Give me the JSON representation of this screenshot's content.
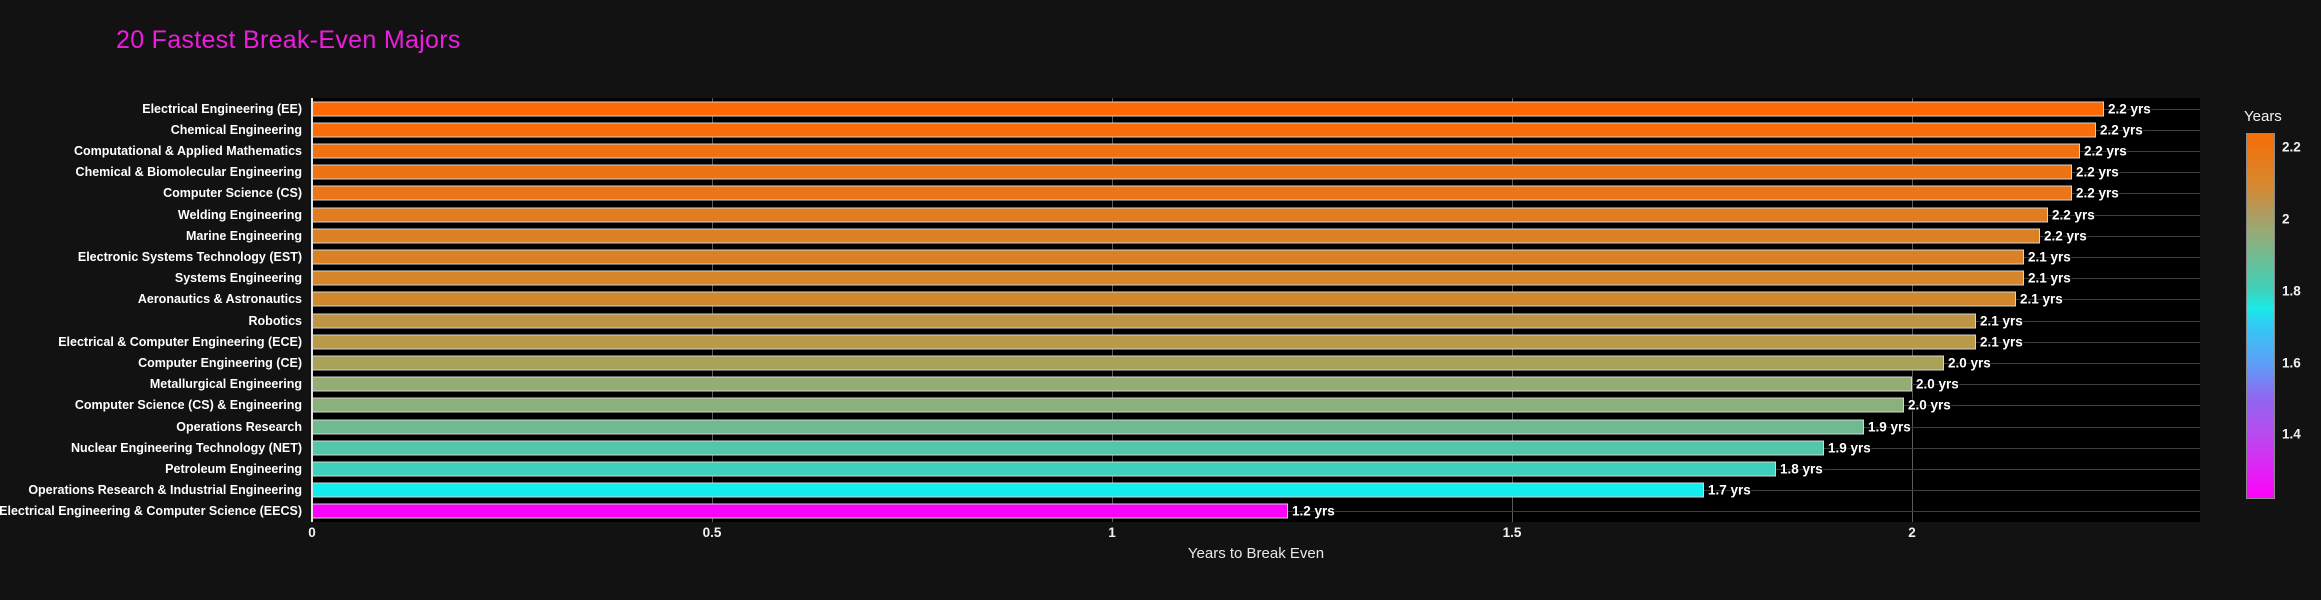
{
  "title": {
    "text": "20 Fastest Break-Even Majors",
    "color": "#ed1ddf"
  },
  "background": {
    "figure": "#121212",
    "plot": "#000000"
  },
  "axes": {
    "x_title": "Years to Break Even",
    "x_ticks": [
      {
        "v": 0,
        "label": "0"
      },
      {
        "v": 0.5,
        "label": "0.5"
      },
      {
        "v": 1,
        "label": "1"
      },
      {
        "v": 1.5,
        "label": "1.5"
      },
      {
        "v": 2,
        "label": "2"
      }
    ]
  },
  "colorbar": {
    "title": "Years",
    "range": [
      1.22,
      2.24
    ],
    "ticks": [
      {
        "v": 2.2,
        "label": "2.2"
      },
      {
        "v": 2.0,
        "label": "2"
      },
      {
        "v": 1.8,
        "label": "1.8"
      },
      {
        "v": 1.6,
        "label": "1.6"
      },
      {
        "v": 1.4,
        "label": "1.4"
      }
    ],
    "gradient": [
      {
        "c": "#f3700a",
        "p": 0
      },
      {
        "c": "#ee7513",
        "p": 4
      },
      {
        "c": "#d6882e",
        "p": 14
      },
      {
        "c": "#b2995c",
        "p": 21
      },
      {
        "c": "#97aa76",
        "p": 27
      },
      {
        "c": "#63c29c",
        "p": 36
      },
      {
        "c": "#3dd2bb",
        "p": 43
      },
      {
        "c": "#19ebe9",
        "p": 48
      },
      {
        "c": "#2fcdf2",
        "p": 52
      },
      {
        "c": "#5b9ff7",
        "p": 63
      },
      {
        "c": "#8d69f1",
        "p": 72
      },
      {
        "c": "#b64cee",
        "p": 82
      },
      {
        "c": "#db28f4",
        "p": 91
      },
      {
        "c": "#fe01fb",
        "p": 100
      }
    ]
  },
  "chart_data": {
    "type": "bar",
    "orientation": "horizontal",
    "title": "20 Fastest Break-Even Majors",
    "xlabel": "Years to Break Even",
    "xlim": [
      0,
      2.36
    ],
    "grid": true,
    "legend_position": "right-colorbar",
    "sort_order": "descending from top",
    "categories": [
      "Electrical Engineering (EE)",
      "Chemical Engineering",
      "Computational & Applied Mathematics",
      "Chemical & Biomolecular Engineering",
      "Computer Science (CS)",
      "Welding Engineering",
      "Marine Engineering",
      "Electronic Systems Technology (EST)",
      "Systems Engineering",
      "Aeronautics & Astronautics",
      "Robotics",
      "Electrical & Computer Engineering (ECE)",
      "Computer Engineering (CE)",
      "Metallurgical Engineering",
      "Computer Science (CS) & Engineering",
      "Operations Research",
      "Nuclear Engineering Technology (NET)",
      "Petroleum Engineering",
      "Operations Research & Industrial Engineering",
      "Electrical Engineering & Computer Science (EECS)"
    ],
    "values": [
      2.24,
      2.23,
      2.21,
      2.2,
      2.2,
      2.17,
      2.16,
      2.14,
      2.14,
      2.13,
      2.08,
      2.08,
      2.04,
      2.0,
      1.99,
      1.94,
      1.89,
      1.83,
      1.74,
      1.22
    ],
    "bar_labels": [
      "2.2 yrs",
      "2.2 yrs",
      "2.2 yrs",
      "2.2 yrs",
      "2.2 yrs",
      "2.2 yrs",
      "2.2 yrs",
      "2.1 yrs",
      "2.1 yrs",
      "2.1 yrs",
      "2.1 yrs",
      "2.1 yrs",
      "2.0 yrs",
      "2.0 yrs",
      "2.0 yrs",
      "1.9 yrs",
      "1.9 yrs",
      "1.8 yrs",
      "1.7 yrs",
      "1.2 yrs"
    ],
    "bar_colors": [
      "#fd6903",
      "#f96c07",
      "#f0710f",
      "#ee7313",
      "#eb7517",
      "#e07d20",
      "#dc8024",
      "#da8126",
      "#d5852a",
      "#d0882d",
      "#bd9544",
      "#b89a49",
      "#a9a158",
      "#93ad74",
      "#8ab07c",
      "#6fba90",
      "#52c6a9",
      "#3ed0ba",
      "#13edec",
      "#fb02fa"
    ]
  }
}
